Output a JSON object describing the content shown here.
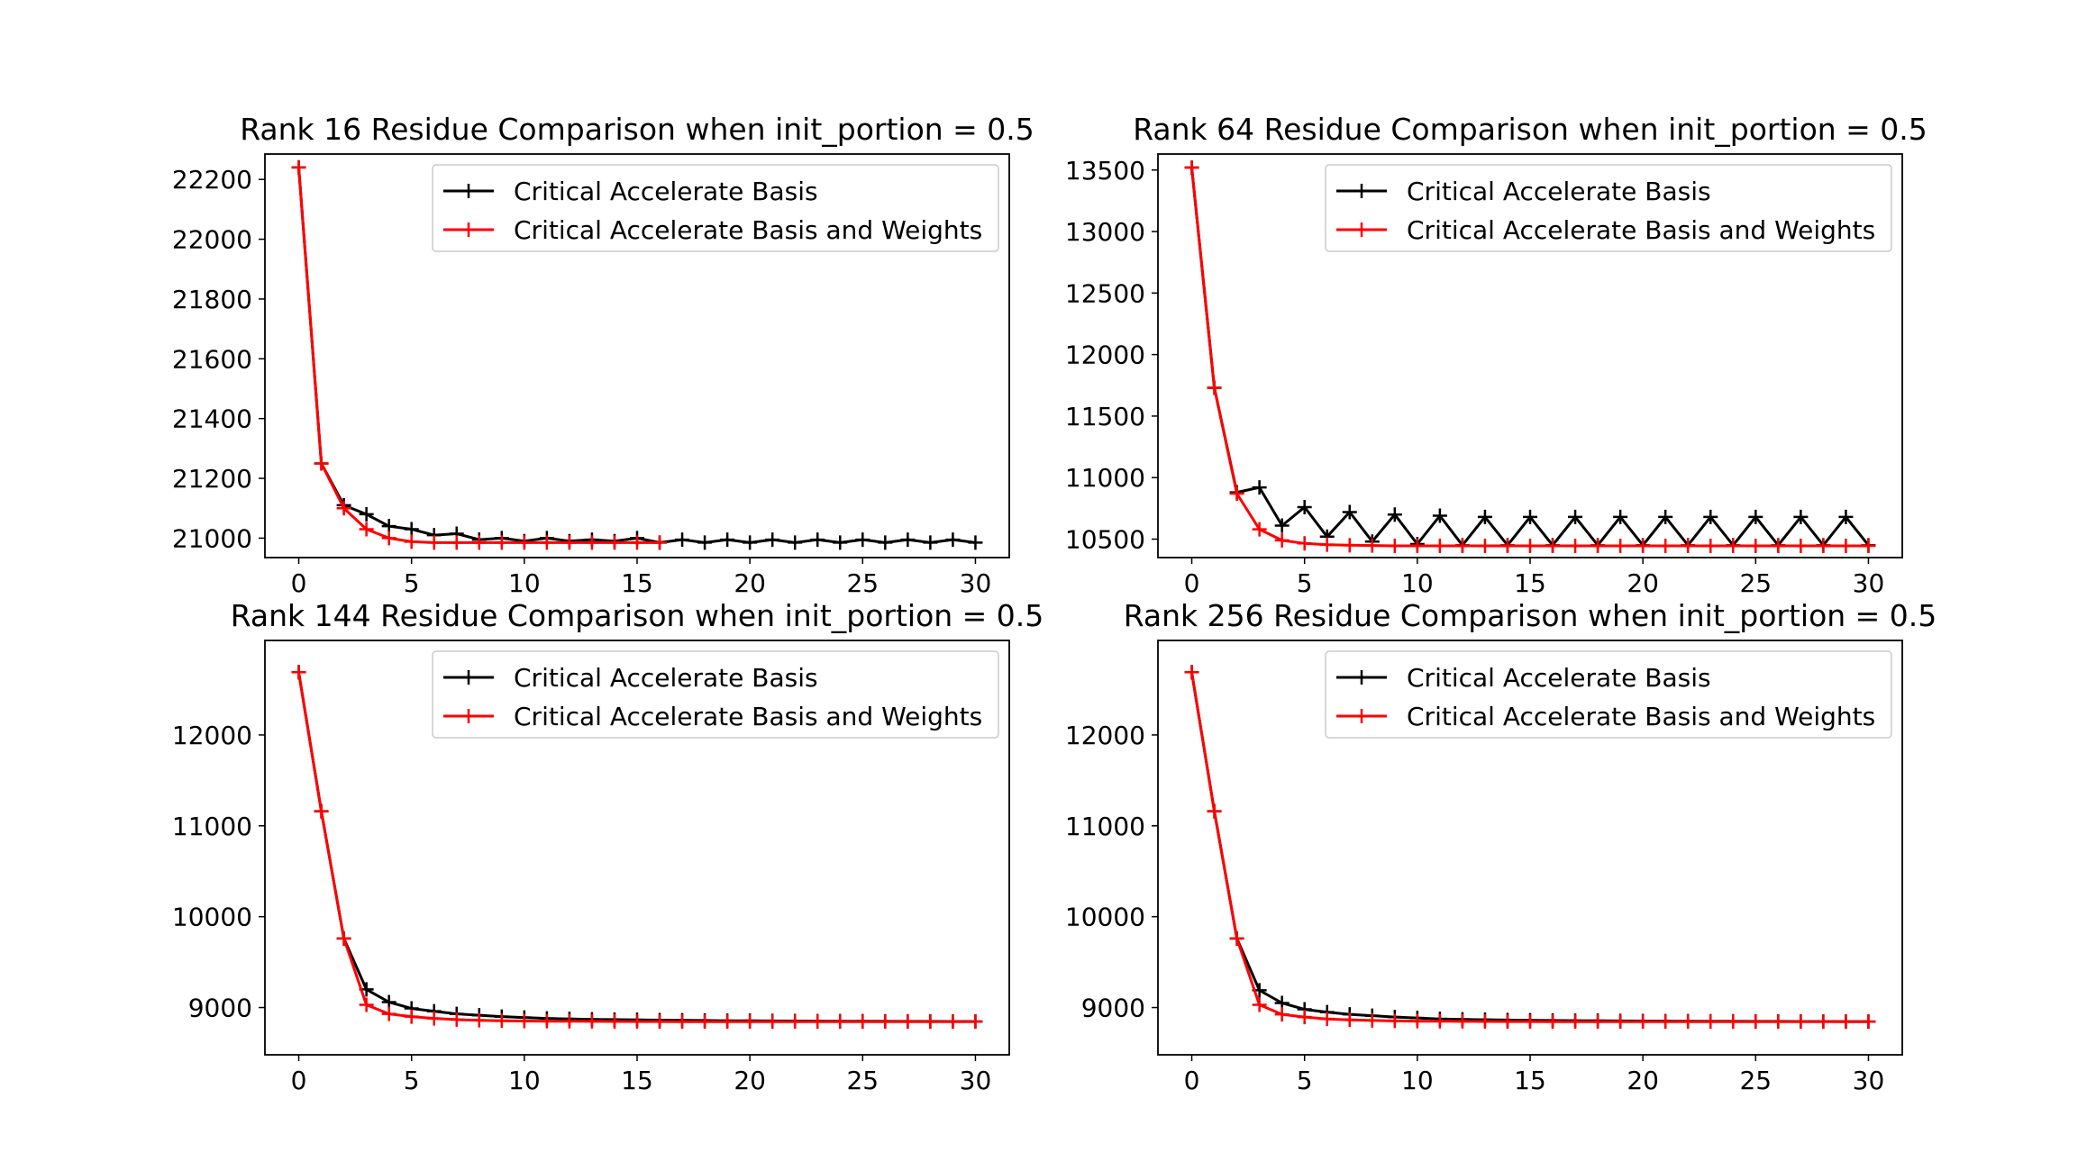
{
  "figure": {
    "charts": [
      {
        "title": "Rank 16 Residue Comparison when init_portion = 0.5",
        "xlim": [
          -1.5,
          31.5
        ],
        "ylim": [
          20935,
          22285
        ],
        "xticks": [
          0,
          5,
          10,
          15,
          20,
          25,
          30
        ],
        "yticks": [
          21000,
          21200,
          21400,
          21600,
          21800,
          22000,
          22200
        ]
      },
      {
        "title": "Rank 64 Residue Comparison when init_portion = 0.5",
        "xlim": [
          -1.5,
          31.5
        ],
        "ylim": [
          10350,
          13630
        ],
        "xticks": [
          0,
          5,
          10,
          15,
          20,
          25,
          30
        ],
        "yticks": [
          10500,
          11000,
          11500,
          12000,
          12500,
          13000,
          13500
        ]
      },
      {
        "title": "Rank 144 Residue Comparison when init_portion = 0.5",
        "xlim": [
          -1.5,
          31.5
        ],
        "ylim": [
          8480,
          13040
        ],
        "xticks": [
          0,
          5,
          10,
          15,
          20,
          25,
          30
        ],
        "yticks": [
          9000,
          10000,
          11000,
          12000
        ]
      },
      {
        "title": "Rank 256 Residue Comparison when init_portion = 0.5",
        "xlim": [
          -1.5,
          31.5
        ],
        "ylim": [
          8480,
          13040
        ],
        "xticks": [
          0,
          5,
          10,
          15,
          20,
          25,
          30
        ],
        "yticks": [
          9000,
          10000,
          11000,
          12000
        ]
      }
    ]
  },
  "chart_data": [
    {
      "type": "line",
      "title": "Rank 16 Residue Comparison when init_portion = 0.5",
      "xlabel": "",
      "ylabel": "",
      "xlim": [
        -1.5,
        31.5
      ],
      "ylim": [
        20935,
        22285
      ],
      "grid": false,
      "legend": "upper-right",
      "series": [
        {
          "name": "Critical Accelerate Basis",
          "color": "#000000",
          "marker": "+",
          "x": [
            0,
            1,
            2,
            3,
            4,
            5,
            6,
            7,
            8,
            9,
            10,
            11,
            12,
            13,
            14,
            15,
            16,
            17,
            18,
            19,
            20,
            21,
            22,
            23,
            24,
            25,
            26,
            27,
            28,
            29,
            30
          ],
          "y": [
            22240,
            21250,
            21110,
            21080,
            21040,
            21030,
            21010,
            21015,
            20995,
            21000,
            20990,
            21000,
            20990,
            20995,
            20990,
            21000,
            20985,
            20995,
            20985,
            20995,
            20985,
            20995,
            20985,
            20995,
            20985,
            20995,
            20985,
            20995,
            20985,
            20995,
            20985
          ]
        },
        {
          "name": "Critical Accelerate Basis and Weights",
          "color": "#ff0000",
          "marker": "+",
          "x": [
            0,
            1,
            2,
            3,
            4,
            5,
            6,
            7,
            8,
            9,
            10,
            11,
            12,
            13,
            14,
            15,
            16
          ],
          "y": [
            22240,
            21250,
            21100,
            21030,
            21000,
            20988,
            20985,
            20985,
            20985,
            20985,
            20985,
            20985,
            20985,
            20985,
            20985,
            20985,
            20985
          ]
        }
      ]
    },
    {
      "type": "line",
      "title": "Rank 64 Residue Comparison when init_portion = 0.5",
      "xlabel": "",
      "ylabel": "",
      "xlim": [
        -1.5,
        31.5
      ],
      "ylim": [
        10350,
        13630
      ],
      "grid": false,
      "legend": "upper-right",
      "series": [
        {
          "name": "Critical Accelerate Basis",
          "color": "#000000",
          "marker": "+",
          "x": [
            0,
            1,
            2,
            3,
            4,
            5,
            6,
            7,
            8,
            9,
            10,
            11,
            12,
            13,
            14,
            15,
            16,
            17,
            18,
            19,
            20,
            21,
            22,
            23,
            24,
            25,
            26,
            27,
            28,
            29,
            30
          ],
          "y": [
            13520,
            11730,
            10880,
            10920,
            10610,
            10760,
            10520,
            10720,
            10480,
            10700,
            10460,
            10690,
            10450,
            10680,
            10450,
            10680,
            10450,
            10680,
            10450,
            10680,
            10450,
            10680,
            10450,
            10680,
            10450,
            10680,
            10450,
            10680,
            10450,
            10680,
            10450
          ]
        },
        {
          "name": "Critical Accelerate Basis and Weights",
          "color": "#ff0000",
          "marker": "+",
          "x": [
            0,
            1,
            2,
            3,
            4,
            5,
            6,
            7,
            8,
            9,
            10,
            11,
            12,
            13,
            14,
            15,
            16,
            17,
            18,
            19,
            20,
            21,
            22,
            23,
            24,
            25,
            26,
            27,
            28,
            29,
            30
          ],
          "y": [
            13520,
            11730,
            10870,
            10580,
            10490,
            10465,
            10455,
            10450,
            10448,
            10445,
            10445,
            10445,
            10445,
            10445,
            10445,
            10445,
            10445,
            10445,
            10445,
            10445,
            10445,
            10445,
            10445,
            10445,
            10445,
            10445,
            10445,
            10445,
            10445,
            10445,
            10445
          ]
        }
      ]
    },
    {
      "type": "line",
      "title": "Rank 144 Residue Comparison when init_portion = 0.5",
      "xlabel": "",
      "ylabel": "",
      "xlim": [
        -1.5,
        31.5
      ],
      "ylim": [
        8480,
        13040
      ],
      "grid": false,
      "legend": "upper-right",
      "series": [
        {
          "name": "Critical Accelerate Basis",
          "color": "#000000",
          "marker": "+",
          "x": [
            0,
            1,
            2,
            3,
            4,
            5,
            6,
            7,
            8,
            9,
            10,
            11,
            12,
            13,
            14,
            15,
            16,
            17,
            18,
            19,
            20,
            21,
            22,
            23,
            24,
            25,
            26,
            27,
            28,
            29,
            30
          ],
          "y": [
            12690,
            11160,
            9760,
            9200,
            9060,
            8990,
            8960,
            8930,
            8915,
            8900,
            8890,
            8880,
            8875,
            8870,
            8868,
            8865,
            8862,
            8860,
            8858,
            8855,
            8855,
            8853,
            8852,
            8851,
            8850,
            8850,
            8849,
            8848,
            8848,
            8847,
            8847
          ]
        },
        {
          "name": "Critical Accelerate Basis and Weights",
          "color": "#ff0000",
          "marker": "+",
          "x": [
            0,
            1,
            2,
            3,
            4,
            5,
            6,
            7,
            8,
            9,
            10,
            11,
            12,
            13,
            14,
            15,
            16,
            17,
            18,
            19,
            20,
            21,
            22,
            23,
            24,
            25,
            26,
            27,
            28,
            29,
            30
          ],
          "y": [
            12690,
            11160,
            9760,
            9030,
            8930,
            8900,
            8880,
            8868,
            8860,
            8855,
            8852,
            8850,
            8849,
            8848,
            8847,
            8846,
            8846,
            8845,
            8845,
            8845,
            8845,
            8845,
            8845,
            8845,
            8845,
            8845,
            8845,
            8845,
            8845,
            8845,
            8845
          ]
        }
      ]
    },
    {
      "type": "line",
      "title": "Rank 256 Residue Comparison when init_portion = 0.5",
      "xlabel": "",
      "ylabel": "",
      "xlim": [
        -1.5,
        31.5
      ],
      "ylim": [
        8480,
        13040
      ],
      "grid": false,
      "legend": "upper-right",
      "series": [
        {
          "name": "Critical Accelerate Basis",
          "color": "#000000",
          "marker": "+",
          "x": [
            0,
            1,
            2,
            3,
            4,
            5,
            6,
            7,
            8,
            9,
            10,
            11,
            12,
            13,
            14,
            15,
            16,
            17,
            18,
            19,
            20,
            21,
            22,
            23,
            24,
            25,
            26,
            27,
            28,
            29,
            30
          ],
          "y": [
            12690,
            11160,
            9760,
            9190,
            9050,
            8980,
            8950,
            8925,
            8910,
            8895,
            8885,
            8875,
            8870,
            8866,
            8863,
            8860,
            8858,
            8856,
            8855,
            8853,
            8852,
            8851,
            8850,
            8849,
            8849,
            8848,
            8848,
            8847,
            8847,
            8846,
            8846
          ]
        },
        {
          "name": "Critical Accelerate Basis and Weights",
          "color": "#ff0000",
          "marker": "+",
          "x": [
            0,
            1,
            2,
            3,
            4,
            5,
            6,
            7,
            8,
            9,
            10,
            11,
            12,
            13,
            14,
            15,
            16,
            17,
            18,
            19,
            20,
            21,
            22,
            23,
            24,
            25,
            26,
            27,
            28,
            29,
            30
          ],
          "y": [
            12690,
            11160,
            9760,
            9030,
            8925,
            8895,
            8875,
            8865,
            8858,
            8853,
            8850,
            8849,
            8848,
            8847,
            8846,
            8846,
            8845,
            8845,
            8845,
            8845,
            8845,
            8845,
            8845,
            8845,
            8845,
            8845,
            8845,
            8845,
            8845,
            8845,
            8845
          ]
        }
      ]
    }
  ]
}
